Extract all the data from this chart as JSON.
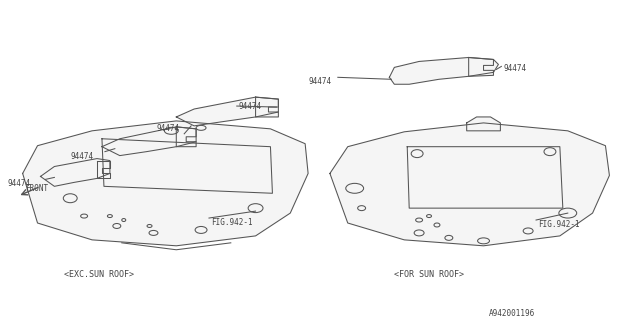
{
  "bg_color": "#ffffff",
  "line_color": "#555555",
  "text_color": "#444444",
  "diagram_id": "A942001196",
  "left_caption": "<EXC.SUN ROOF>",
  "right_caption": "<FOR SUN ROOF>",
  "fig_label": "FIG.942-1",
  "part_number": "94474",
  "front_label": "FRONT",
  "lw": 0.75
}
